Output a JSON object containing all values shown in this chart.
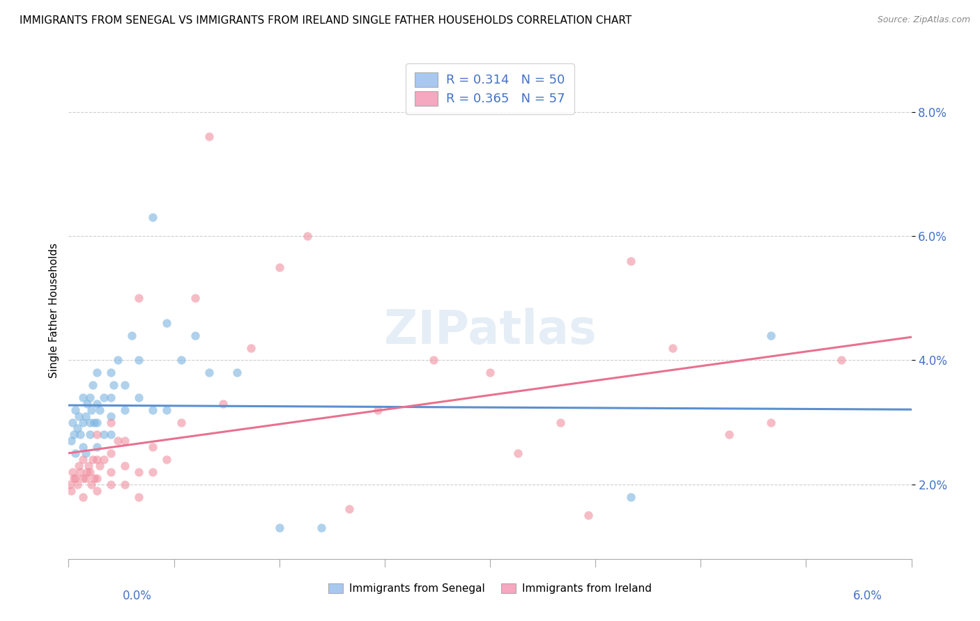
{
  "title": "IMMIGRANTS FROM SENEGAL VS IMMIGRANTS FROM IRELAND SINGLE FATHER HOUSEHOLDS CORRELATION CHART",
  "source": "Source: ZipAtlas.com",
  "ylabel": "Single Father Households",
  "ytick_labels": [
    "2.0%",
    "4.0%",
    "6.0%",
    "8.0%"
  ],
  "ytick_values": [
    0.02,
    0.04,
    0.06,
    0.08
  ],
  "xlim": [
    0.0,
    0.06
  ],
  "ylim": [
    0.008,
    0.088
  ],
  "legend_entries": [
    {
      "label": "R = 0.314   N = 50",
      "color": "#a8c8f0"
    },
    {
      "label": "R = 0.365   N = 57",
      "color": "#f5a8c0"
    }
  ],
  "watermark": "ZIPatlas",
  "senegal_color": "#7ab3e0",
  "ireland_color": "#f090a0",
  "line_senegal_color": "#5b8fcf",
  "line_ireland_color": "#e87090",
  "senegal_x": [
    0.0002,
    0.0003,
    0.0004,
    0.0005,
    0.0005,
    0.0006,
    0.0007,
    0.0008,
    0.001,
    0.001,
    0.001,
    0.0012,
    0.0012,
    0.0013,
    0.0015,
    0.0015,
    0.0015,
    0.0016,
    0.0017,
    0.0018,
    0.002,
    0.002,
    0.002,
    0.002,
    0.0022,
    0.0025,
    0.0025,
    0.003,
    0.003,
    0.003,
    0.003,
    0.0032,
    0.0035,
    0.004,
    0.004,
    0.0045,
    0.005,
    0.005,
    0.006,
    0.006,
    0.007,
    0.007,
    0.008,
    0.009,
    0.01,
    0.012,
    0.015,
    0.018,
    0.04,
    0.05
  ],
  "senegal_y": [
    0.027,
    0.03,
    0.028,
    0.025,
    0.032,
    0.029,
    0.031,
    0.028,
    0.026,
    0.03,
    0.034,
    0.025,
    0.031,
    0.033,
    0.028,
    0.03,
    0.034,
    0.032,
    0.036,
    0.03,
    0.026,
    0.03,
    0.033,
    0.038,
    0.032,
    0.028,
    0.034,
    0.028,
    0.031,
    0.034,
    0.038,
    0.036,
    0.04,
    0.032,
    0.036,
    0.044,
    0.034,
    0.04,
    0.032,
    0.063,
    0.032,
    0.046,
    0.04,
    0.044,
    0.038,
    0.038,
    0.013,
    0.013,
    0.018,
    0.044
  ],
  "ireland_x": [
    0.0001,
    0.0002,
    0.0003,
    0.0004,
    0.0005,
    0.0006,
    0.0007,
    0.0008,
    0.001,
    0.001,
    0.001,
    0.0012,
    0.0013,
    0.0014,
    0.0015,
    0.0016,
    0.0017,
    0.0018,
    0.002,
    0.002,
    0.002,
    0.002,
    0.0022,
    0.0025,
    0.003,
    0.003,
    0.003,
    0.003,
    0.0035,
    0.004,
    0.004,
    0.004,
    0.005,
    0.005,
    0.005,
    0.006,
    0.006,
    0.007,
    0.008,
    0.009,
    0.01,
    0.011,
    0.013,
    0.015,
    0.017,
    0.02,
    0.022,
    0.026,
    0.03,
    0.032,
    0.035,
    0.037,
    0.04,
    0.043,
    0.047,
    0.05,
    0.055
  ],
  "ireland_y": [
    0.02,
    0.019,
    0.022,
    0.021,
    0.021,
    0.02,
    0.023,
    0.022,
    0.018,
    0.021,
    0.024,
    0.021,
    0.022,
    0.023,
    0.022,
    0.02,
    0.024,
    0.021,
    0.019,
    0.021,
    0.024,
    0.028,
    0.023,
    0.024,
    0.02,
    0.022,
    0.025,
    0.03,
    0.027,
    0.02,
    0.023,
    0.027,
    0.018,
    0.022,
    0.05,
    0.022,
    0.026,
    0.024,
    0.03,
    0.05,
    0.076,
    0.033,
    0.042,
    0.055,
    0.06,
    0.016,
    0.032,
    0.04,
    0.038,
    0.025,
    0.03,
    0.015,
    0.056,
    0.042,
    0.028,
    0.03,
    0.04
  ]
}
